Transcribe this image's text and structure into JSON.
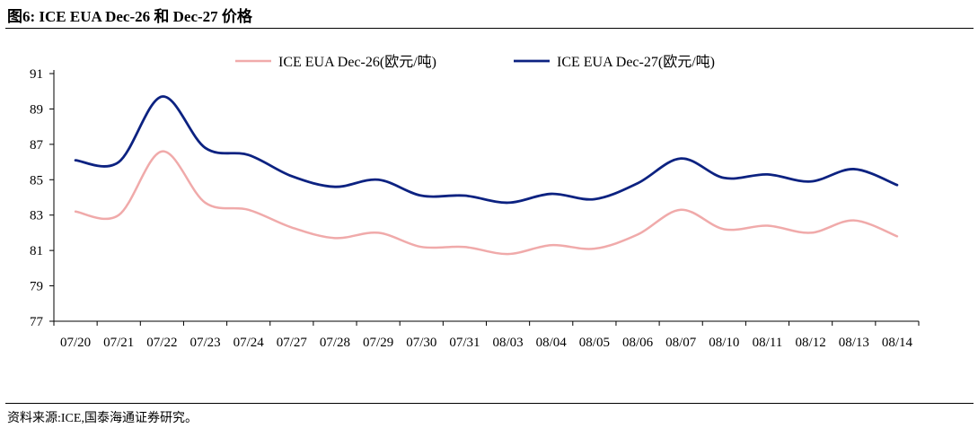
{
  "header": {
    "title": "图6:  ICE EUA  Dec-26 和  Dec-27 价格"
  },
  "footer": {
    "source": "资料来源:ICE,国泰海通证券研究。"
  },
  "chart_data": {
    "type": "line",
    "title": "图6:  ICE EUA  Dec-26 和  Dec-27 价格",
    "xlabel": "",
    "ylabel": "",
    "ylim": [
      77,
      91
    ],
    "yticks": [
      77,
      79,
      81,
      83,
      85,
      87,
      89,
      91
    ],
    "grid": false,
    "legend_position": "top",
    "categories": [
      "07/20",
      "07/21",
      "07/22",
      "07/23",
      "07/24",
      "07/27",
      "07/28",
      "07/29",
      "07/30",
      "07/31",
      "08/03",
      "08/04",
      "08/05",
      "08/06",
      "08/07",
      "08/10",
      "08/11",
      "08/12",
      "08/13",
      "08/14"
    ],
    "series": [
      {
        "name": "ICE EUA Dec-26(欧元/吨)",
        "color": "#f0aaaa",
        "values": [
          83.2,
          83.0,
          86.6,
          83.7,
          83.3,
          82.3,
          81.7,
          82.0,
          81.2,
          81.2,
          80.8,
          81.3,
          81.1,
          81.9,
          83.3,
          82.2,
          82.4,
          82.0,
          82.7,
          81.8
        ]
      },
      {
        "name": "ICE EUA Dec-27(欧元/吨)",
        "color": "#0c2281",
        "values": [
          86.1,
          86.0,
          89.7,
          86.8,
          86.4,
          85.2,
          84.6,
          85.0,
          84.1,
          84.1,
          83.7,
          84.2,
          83.9,
          84.8,
          86.2,
          85.1,
          85.3,
          84.9,
          85.6,
          84.7
        ]
      }
    ]
  }
}
